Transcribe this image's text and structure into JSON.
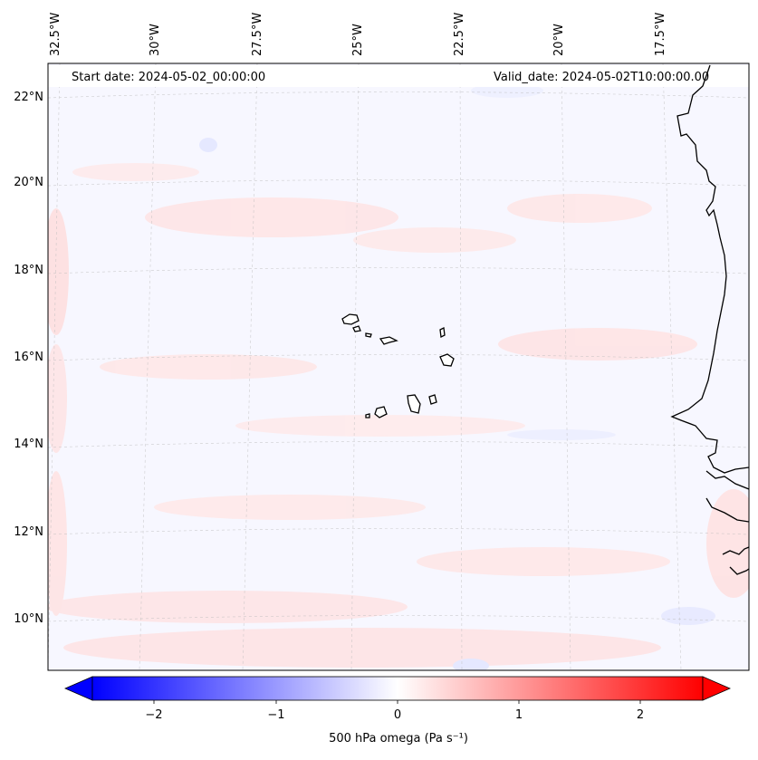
{
  "header": {
    "start_date": "Start date: 2024-05-02_00:00:00",
    "valid_date": "Valid_date: 2024-05-02T10:00:00.00"
  },
  "axes": {
    "lon_labels": [
      "32.5°W",
      "30°W",
      "27.5°W",
      "25°W",
      "22.5°W",
      "20°W",
      "17.5°W"
    ],
    "lat_labels": [
      "22°N",
      "20°N",
      "18°N",
      "16°N",
      "14°N",
      "12°N",
      "10°N"
    ]
  },
  "colorbar": {
    "title": "500 hPa omega (Pa s⁻¹)",
    "tick_labels": [
      "−2",
      "−1",
      "0",
      "1",
      "2"
    ],
    "min_color": "#0000ff",
    "mid_color": "#ffffff",
    "max_color": "#ff0000",
    "extend": "both"
  },
  "map": {
    "region": "Eastern tropical Atlantic / West Africa",
    "features": [
      "Cape Verde islands",
      "West African coastline"
    ],
    "field_description": "weak omega field, mostly near zero",
    "gridlines": true,
    "ocean_tint": "#f7f7ff",
    "positive_tint": "#ffe2e2",
    "negative_tint": "#e6e8ff",
    "coast_color": "#000000"
  }
}
